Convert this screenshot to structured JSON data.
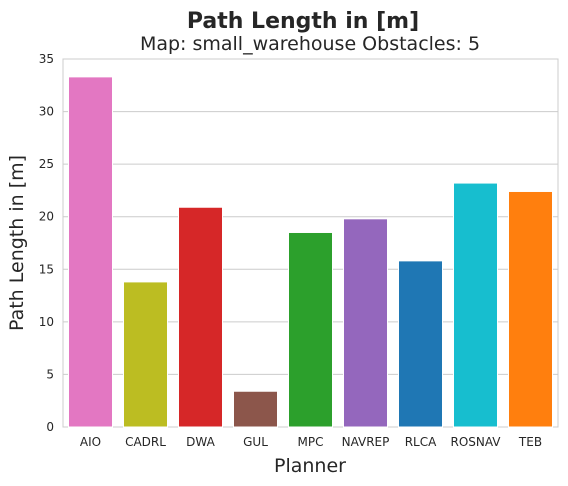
{
  "chart_data": {
    "type": "bar",
    "title": "Path Length in [m]",
    "subtitle": "Map: small_warehouse Obstacles: 5",
    "xlabel": "Planner",
    "ylabel": "Path Length in [m]",
    "categories": [
      "AIO",
      "CADRL",
      "DWA",
      "GUL",
      "MPC",
      "NAVREP",
      "RLCA",
      "ROSNAV",
      "TEB"
    ],
    "values": [
      33.3,
      13.8,
      20.9,
      3.4,
      18.5,
      19.8,
      15.8,
      23.2,
      22.4
    ],
    "colors": [
      "#e377c2",
      "#bcbd22",
      "#d62728",
      "#8c564b",
      "#2ca02c",
      "#9467bd",
      "#1f77b4",
      "#17becf",
      "#ff7f0e"
    ],
    "ylim": [
      0,
      35
    ],
    "yticks": [
      0,
      5,
      10,
      15,
      20,
      25,
      30,
      35
    ],
    "grid": true,
    "grid_axis": "y"
  }
}
